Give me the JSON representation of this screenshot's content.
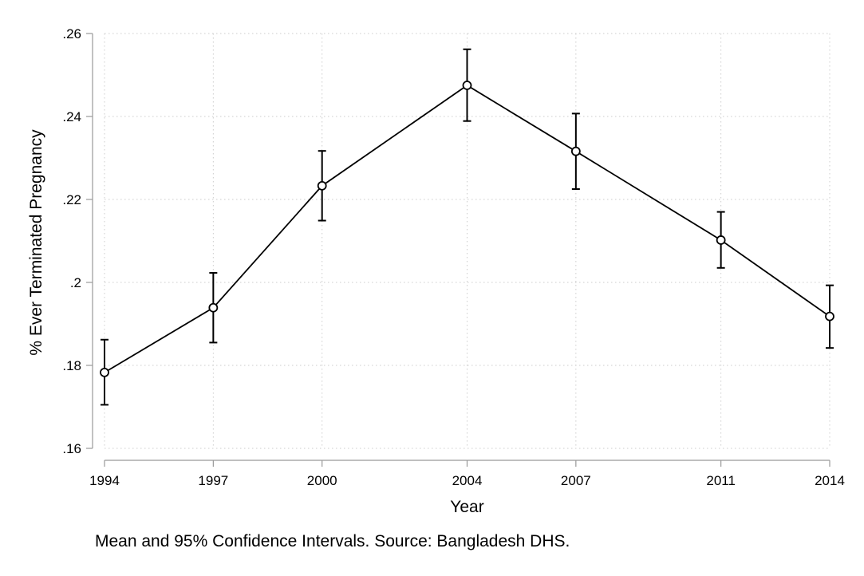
{
  "chart_data": {
    "type": "line",
    "title": "",
    "xlabel": "Year",
    "ylabel": "% Ever Terminated Pregnancy",
    "note": "Mean and 95% Confidence Intervals.  Source: Bangladesh DHS.",
    "x": [
      1994,
      1997,
      2000,
      2004,
      2007,
      2011,
      2014
    ],
    "x_tick_labels": [
      "1994",
      "1997",
      "2000",
      "2004",
      "2007",
      "2011",
      "2014"
    ],
    "y_tick_values": [
      0.16,
      0.18,
      0.2,
      0.22,
      0.24,
      0.26
    ],
    "y_tick_labels": [
      ".16",
      ".18",
      ".2",
      ".22",
      ".24",
      ".26"
    ],
    "xlim": [
      1994,
      2014
    ],
    "ylim": [
      0.16,
      0.26
    ],
    "grid": true,
    "series": [
      {
        "values": [
          0.1783,
          0.1939,
          0.2233,
          0.2475,
          0.2316,
          0.2102,
          0.1918
        ],
        "ci_lower": [
          0.1705,
          0.1855,
          0.2149,
          0.2389,
          0.2225,
          0.2035,
          0.1842
        ],
        "ci_upper": [
          0.1862,
          0.2023,
          0.2317,
          0.2562,
          0.2407,
          0.217,
          0.1993
        ]
      }
    ],
    "colors": {
      "line": "#000000",
      "axis": "#999999",
      "grid": "#cccccc"
    }
  }
}
